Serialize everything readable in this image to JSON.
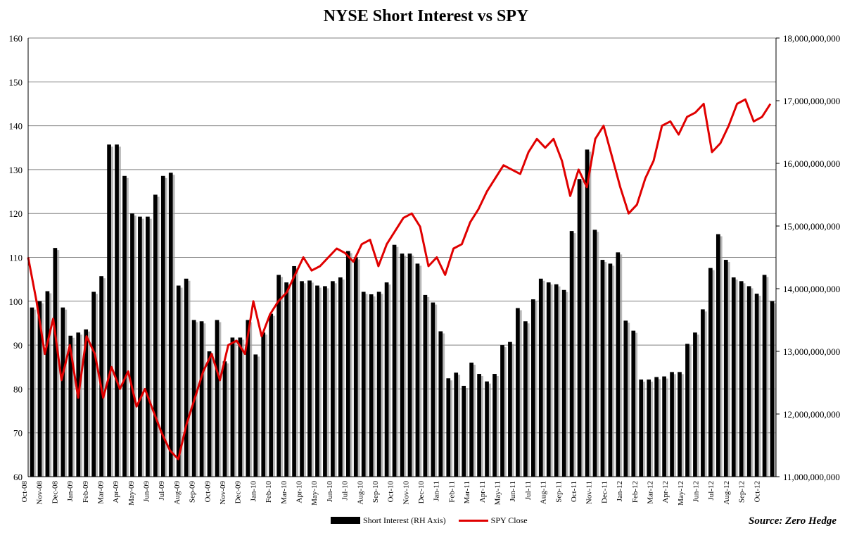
{
  "chart_data": {
    "type": "bar+line",
    "title": "NYSE Short Interest vs SPY",
    "source": "Source: Zero Hedge",
    "left_axis": {
      "ylim": [
        60,
        160
      ],
      "ticks": [
        60,
        70,
        80,
        90,
        100,
        110,
        120,
        130,
        140,
        150,
        160
      ],
      "tick_labels": [
        "60",
        "70",
        "80",
        "90",
        "100",
        "110",
        "120",
        "130",
        "140",
        "150",
        "160"
      ]
    },
    "right_axis": {
      "ylim": [
        11000000000,
        18000000000
      ],
      "ticks": [
        11000000000,
        12000000000,
        13000000000,
        14000000000,
        15000000000,
        16000000000,
        17000000000,
        18000000000
      ],
      "tick_labels": [
        "11,000,000,000",
        "12,000,000,000",
        "13,000,000,000",
        "14,000,000,000",
        "15,000,000,000",
        "16,000,000,000",
        "17,000,000,000",
        "18,000,000,000"
      ]
    },
    "x_tick_labels": [
      "Oct-08",
      "Nov-08",
      "Dec-08",
      "Jan-09",
      "Feb-09",
      "Mar-09",
      "Apr-09",
      "May-09",
      "Jun-09",
      "Jul-09",
      "Aug-09",
      "Sep-09",
      "Oct-09",
      "Nov-09",
      "Dec-09",
      "Jan-10",
      "Feb-10",
      "Mar-10",
      "Apr-10",
      "May-10",
      "Jun-10",
      "Jul-10",
      "Aug-10",
      "Sep-10",
      "Oct-10",
      "Nov-10",
      "Dec-10",
      "Jan-11",
      "Feb-11",
      "Mar-11",
      "Apr-11",
      "May-11",
      "Jun-11",
      "Jul-11",
      "Aug-11",
      "Sep-11",
      "Oct-11",
      "Nov-11",
      "Dec-11",
      "Jan-12",
      "Feb-12",
      "Mar-12",
      "Apr-12",
      "May-12",
      "Jun-12",
      "Jul-12",
      "Aug-12",
      "Sep-12",
      "Oct-12"
    ],
    "grid": true,
    "legend_position": "bottom",
    "series": [
      {
        "name": "Short Interest (RH Axis)",
        "type": "bar",
        "axis": "right",
        "color": "#000000",
        "values": [
          13700000000,
          13800000000,
          13960000000,
          14650000000,
          13700000000,
          13250000000,
          13300000000,
          13350000000,
          13950000000,
          14200000000,
          16300000000,
          16300000000,
          15800000000,
          15200000000,
          15150000000,
          15150000000,
          15500000000,
          15800000000,
          15850000000,
          14050000000,
          14160000000,
          13500000000,
          13480000000,
          13000000000,
          13500000000,
          12840000000,
          13220000000,
          13220000000,
          13500000000,
          12950000000,
          13300000000,
          13600000000,
          14220000000,
          14100000000,
          14360000000,
          14120000000,
          14130000000,
          14050000000,
          14040000000,
          14120000000,
          14180000000,
          14600000000,
          14500000000,
          13950000000,
          13910000000,
          13950000000,
          14100000000,
          14700000000,
          14560000000,
          14560000000,
          14400000000,
          13900000000,
          13780000000,
          13320000000,
          12570000000,
          12660000000,
          12450000000,
          12820000000,
          12640000000,
          12520000000,
          12640000000,
          13100000000,
          13150000000,
          13690000000,
          13480000000,
          13830000000,
          14160000000,
          14100000000,
          14070000000,
          13980000000,
          14920000000,
          15750000000,
          16220000000,
          14940000000,
          14460000000,
          14400000000,
          14580000000,
          13490000000,
          13330000000,
          12550000000,
          12550000000,
          12590000000,
          12600000000,
          12670000000,
          12670000000,
          13120000000,
          13300000000,
          13670000000,
          14330000000,
          14870000000,
          14460000000,
          14180000000,
          14120000000,
          14040000000,
          13920000000,
          14220000000,
          13800000000
        ],
        "_encoding_note": "values are short-interest share counts, ~biweekly from Oct-08 to Oct-12"
      },
      {
        "name": "SPY Close",
        "type": "line",
        "axis": "left",
        "color": "#e00000",
        "values": [
          110,
          100,
          88,
          96,
          82,
          90,
          78,
          92,
          88,
          78,
          85,
          80,
          84,
          76,
          80,
          75,
          70,
          66,
          64,
          72,
          78,
          84,
          88,
          82,
          90,
          91,
          88,
          100,
          92,
          97,
          100,
          102,
          106,
          110,
          107,
          108,
          110,
          112,
          111,
          109,
          113,
          114,
          108,
          113,
          116,
          119,
          120,
          117,
          108,
          110,
          106,
          112,
          113,
          118,
          121,
          125,
          128,
          131,
          130,
          129,
          134,
          137,
          135,
          137,
          132,
          124,
          130,
          126,
          137,
          140,
          133,
          126,
          120,
          122,
          128,
          132,
          140,
          141,
          138,
          142,
          143,
          145,
          134,
          136,
          140,
          145,
          146,
          141,
          142,
          145
        ]
      }
    ]
  }
}
